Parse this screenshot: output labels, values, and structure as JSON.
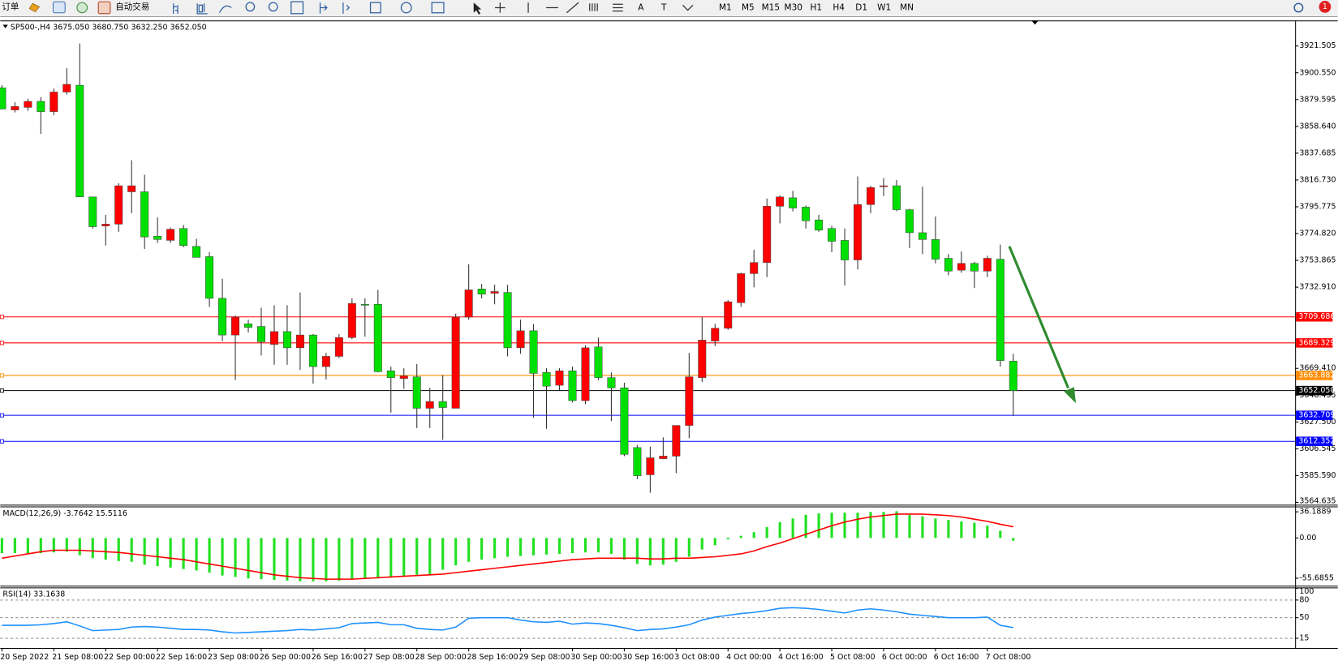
{
  "toolbar": {
    "order_button": "订单",
    "auto_trading": "自动交易",
    "text_tools": [
      "A",
      "T"
    ],
    "timeframes": [
      "M1",
      "M5",
      "M15",
      "M30",
      "H1",
      "H4",
      "D1",
      "W1",
      "MN"
    ],
    "notification": "1"
  },
  "chart_data": [
    {
      "type": "candlestick",
      "title": "SP500-,H4",
      "header_values": [
        "3675.050",
        "3680.750",
        "3632.250",
        "3652.050"
      ],
      "categories": [
        "20 Sep 2022",
        null,
        null,
        null,
        "21 Sep 08:00",
        null,
        null,
        null,
        "22 Sep 00:00",
        null,
        null,
        null,
        "22 Sep 16:00",
        null,
        null,
        null,
        "23 Sep 08:00",
        null,
        null,
        null,
        "26 Sep 00:00",
        null,
        null,
        null,
        "26 Sep 16:00",
        null,
        null,
        null,
        "27 Sep 08:00",
        null,
        null,
        null,
        "28 Sep 00:00",
        null,
        null,
        null,
        "28 Sep 16:00",
        null,
        null,
        null,
        "29 Sep 08:00",
        null,
        null,
        null,
        "30 Sep 00:00",
        null,
        null,
        null,
        "30 Sep 16:00",
        null,
        null,
        null,
        "3 Oct 08:00",
        null,
        null,
        null,
        "4 Oct 00:00",
        null,
        null,
        null,
        "4 Oct 16:00",
        null,
        null,
        null,
        "5 Oct 08:00",
        null,
        null,
        null,
        "6 Oct 00:00",
        null,
        null,
        null,
        "6 Oct 16:00",
        null,
        null,
        null,
        "7 Oct 08:00",
        null,
        null
      ],
      "open": [
        3888.8,
        3871.5,
        3873.5,
        3878.2,
        3870.2,
        3885.5,
        3890.8,
        3803.5,
        3780.8,
        3782.2,
        3807.5,
        3807.5,
        3772.8,
        3769.5,
        3778.8,
        3764.8,
        3756.8,
        3724.2,
        3695.5,
        3704.2,
        3702.2,
        3688.2,
        3698.2,
        3685.5,
        3695.5,
        3670.8,
        3678.8,
        3693.5,
        3719.5,
        3719.5,
        3667.5,
        3661.5,
        3662.8,
        3638.2,
        3643.5,
        3638.2,
        3709.5,
        3731.5,
        3728.2,
        3728.8,
        3685.5,
        3698.8,
        3666.2,
        3656.2,
        3667.5,
        3644.2,
        3686.2,
        3662.2,
        3654.2,
        3607.5,
        3586.2,
        3598.8,
        3600.8,
        3624.8,
        3662.2,
        3690.8,
        3700.8,
        3720.8,
        3743.5,
        3752.2,
        3796.2,
        3802.8,
        3795.5,
        3785.5,
        3778.8,
        3769.5,
        3754.2,
        3797.5,
        3811.5,
        3812.2,
        3793.5,
        3775.5,
        3770.2,
        3755.5,
        3746.2,
        3751.5,
        3745.5,
        3754.8,
        3675.05
      ],
      "high": [
        3890.8,
        3877.5,
        3880.2,
        3881.5,
        3888.2,
        3904.2,
        3923.5,
        3803.5,
        3789.5,
        3814.2,
        3832.2,
        3820.8,
        3787.5,
        3779.5,
        3781.5,
        3770.8,
        3760.2,
        3739.5,
        3710.8,
        3707.5,
        3716.8,
        3718.8,
        3718.8,
        3728.8,
        3696.2,
        3681.5,
        3696.2,
        3724.2,
        3724.2,
        3730.8,
        3670.8,
        3669.5,
        3672.8,
        3654.2,
        3664.2,
        3712.2,
        3750.8,
        3735.5,
        3734.8,
        3734.8,
        3707.5,
        3704.2,
        3669.5,
        3669.5,
        3670.8,
        3687.5,
        3693.5,
        3666.2,
        3658.2,
        3609.5,
        3608.2,
        3615.5,
        3624.8,
        3681.5,
        3709.5,
        3704.2,
        3722.8,
        3744.2,
        3762.2,
        3802.2,
        3804.8,
        3808.2,
        3796.8,
        3789.5,
        3780.8,
        3778.8,
        3819.5,
        3812.2,
        3818.2,
        3816.8,
        3794.2,
        3811.5,
        3788.2,
        3758.8,
        3760.8,
        3752.8,
        3757.5,
        3766.2,
        3680.75
      ],
      "low": [
        3872.2,
        3869.5,
        3870.8,
        3852.8,
        3867.5,
        3883.5,
        3803.5,
        3778.8,
        3765.5,
        3776.2,
        3790.8,
        3762.8,
        3767.5,
        3767.5,
        3764.2,
        3756.2,
        3717.5,
        3690.8,
        3660.2,
        3697.5,
        3679.5,
        3672.2,
        3672.2,
        3668.2,
        3657.5,
        3660.8,
        3677.5,
        3692.2,
        3694.2,
        3666.2,
        3634.8,
        3653.5,
        3622.8,
        3622.8,
        3613.5,
        3638.2,
        3707.5,
        3724.2,
        3719.5,
        3678.8,
        3680.8,
        3630.8,
        3622.2,
        3652.2,
        3642.8,
        3641.5,
        3660.2,
        3628.2,
        3600.8,
        3582.8,
        3572.2,
        3598.8,
        3587.5,
        3614.8,
        3658.8,
        3686.8,
        3699.5,
        3717.5,
        3732.8,
        3740.8,
        3782.8,
        3792.2,
        3778.8,
        3776.2,
        3760.2,
        3734.2,
        3746.8,
        3790.8,
        3804.2,
        3792.2,
        3763.5,
        3758.8,
        3751.5,
        3742.2,
        3744.2,
        3732.2,
        3740.8,
        3670.8,
        3632.25
      ],
      "close": [
        3872.2,
        3874.2,
        3878.2,
        3870.2,
        3885.5,
        3891.5,
        3803.5,
        3780.2,
        3782.2,
        3812.2,
        3812.2,
        3772.2,
        3770.2,
        3778.2,
        3765.5,
        3756.2,
        3724.2,
        3695.5,
        3709.5,
        3701.5,
        3690.2,
        3698.2,
        3685.5,
        3695.5,
        3670.8,
        3678.8,
        3693.5,
        3720.2,
        3718.8,
        3666.8,
        3662.2,
        3663.5,
        3638.2,
        3643.5,
        3638.8,
        3709.5,
        3730.8,
        3727.5,
        3729.5,
        3685.5,
        3698.8,
        3665.5,
        3655.5,
        3667.5,
        3644.2,
        3685.5,
        3662.2,
        3654.2,
        3602.2,
        3585.5,
        3599.5,
        3600.8,
        3624.8,
        3662.8,
        3691.5,
        3700.8,
        3721.5,
        3743.5,
        3752.2,
        3796.2,
        3803.5,
        3794.8,
        3784.8,
        3777.5,
        3768.8,
        3754.2,
        3797.5,
        3810.8,
        3812.2,
        3793.5,
        3775.5,
        3770.2,
        3754.8,
        3745.5,
        3751.5,
        3745.5,
        3755.5,
        3675.5,
        3652.05
      ],
      "up_color": "#ff0000",
      "down_color": "#00e000",
      "ylim": [
        3562.8,
        3938.8
      ],
      "yticks": [
        {
          "value": 3921.505,
          "label": "3921.505"
        },
        {
          "value": 3900.55,
          "label": "3900.550"
        },
        {
          "value": 3879.595,
          "label": "3879.595"
        },
        {
          "value": 3858.64,
          "label": "3858.640"
        },
        {
          "value": 3837.685,
          "label": "3837.685"
        },
        {
          "value": 3816.73,
          "label": "3816.730"
        },
        {
          "value": 3795.775,
          "label": "3795.775"
        },
        {
          "value": 3774.82,
          "label": "3774.820"
        },
        {
          "value": 3753.865,
          "label": "3753.865"
        },
        {
          "value": 3732.91,
          "label": "3732.910"
        },
        {
          "value": 3669.41,
          "label": "3669.410"
        },
        {
          "value": 3648.455,
          "label": "3648.455"
        },
        {
          "value": 3627.5,
          "label": "3627.500"
        },
        {
          "value": 3606.545,
          "label": "3606.545"
        },
        {
          "value": 3585.59,
          "label": "3585.590"
        },
        {
          "value": 3564.635,
          "label": "3564.635"
        }
      ],
      "grid": false,
      "levels": [
        {
          "value": 3709.686,
          "label": "3709.686",
          "color": "#ff0000"
        },
        {
          "value": 3689.329,
          "label": "3689.329",
          "color": "#ff0000"
        },
        {
          "value": 3663.882,
          "label": "3663.882",
          "color": "#ff8c00"
        },
        {
          "value": 3652.05,
          "label": "3652.050",
          "color": "#000000"
        },
        {
          "value": 3632.709,
          "label": "3632.709",
          "color": "#0000ff"
        },
        {
          "value": 3612.352,
          "label": "3612.352",
          "color": "#0000ff"
        }
      ]
    },
    {
      "type": "bar",
      "title": "MACD(12,26,9)",
      "series": [
        {
          "color": "#22e022",
          "values": [
            -21,
            -21,
            -21,
            -21,
            -20,
            -19,
            -24,
            -28,
            -30,
            -32,
            -33,
            -37,
            -39,
            -41,
            -43,
            -45,
            -48,
            -52,
            -54,
            -56,
            -57,
            -58,
            -59,
            -60,
            -60,
            -60,
            -59,
            -57,
            -56,
            -56,
            -55,
            -53,
            -51,
            -50,
            -44,
            -38,
            -33,
            -30,
            -28,
            -26,
            -25,
            -24,
            -23,
            -22,
            -21,
            -20,
            -20,
            -22,
            -30,
            -36,
            -38,
            -37,
            -33,
            -26,
            -16,
            -10,
            -2,
            3,
            8,
            15,
            22,
            27,
            32,
            34,
            35,
            35,
            35,
            36,
            36,
            37,
            32,
            30,
            27,
            25,
            23,
            21,
            17,
            10,
            -3.7642
          ]
        },
        {
          "type": "line",
          "color": "#ff0000",
          "values": [
            -28,
            -25,
            -22,
            -19,
            -17,
            -17,
            -17,
            -18,
            -19,
            -20,
            -22,
            -24,
            -26,
            -28,
            -30,
            -33,
            -36,
            -39,
            -42,
            -45,
            -48,
            -51,
            -53,
            -55,
            -56,
            -57,
            -57,
            -57,
            -56,
            -55,
            -54,
            -53,
            -52,
            -51,
            -50,
            -48,
            -46,
            -44,
            -42,
            -40,
            -38,
            -36,
            -34,
            -32,
            -30,
            -29,
            -28,
            -28,
            -28,
            -28,
            -29,
            -29,
            -28,
            -28,
            -27,
            -26,
            -24,
            -22,
            -18,
            -12,
            -7,
            -1,
            5,
            11,
            17,
            22,
            26,
            29,
            31,
            33,
            33,
            33,
            32,
            31,
            29,
            26,
            23,
            19,
            15.5116
          ]
        }
      ],
      "ylim": [
        -64.9,
        41.3
      ],
      "yticks": [
        36.1889,
        {
          "value": 0,
          "label": "0.00"
        },
        -55.6855
      ],
      "grid": false
    },
    {
      "type": "line",
      "title": "RSI(14)",
      "series": [
        {
          "color": "#1e90ff",
          "values": [
            37,
            37,
            37,
            38,
            40,
            43,
            36,
            28,
            29,
            30,
            34,
            35,
            34,
            32,
            30,
            30,
            29,
            26,
            24,
            25,
            26,
            27,
            28,
            30,
            29,
            31,
            33,
            40,
            41,
            42,
            38,
            38,
            32,
            30,
            29,
            34,
            49,
            50,
            50,
            50,
            46,
            43,
            42,
            44,
            39,
            41,
            40,
            37,
            33,
            28,
            30,
            31,
            34,
            38,
            46,
            51,
            54,
            57,
            59,
            62,
            66,
            67,
            66,
            64,
            61,
            58,
            63,
            65,
            63,
            60,
            56,
            54,
            52,
            50,
            50,
            50,
            51,
            37,
            33.1638
          ]
        }
      ],
      "ylim": [
        0,
        100
      ],
      "yticks": [
        100,
        80,
        50,
        15
      ],
      "grid": "dashed"
    }
  ]
}
